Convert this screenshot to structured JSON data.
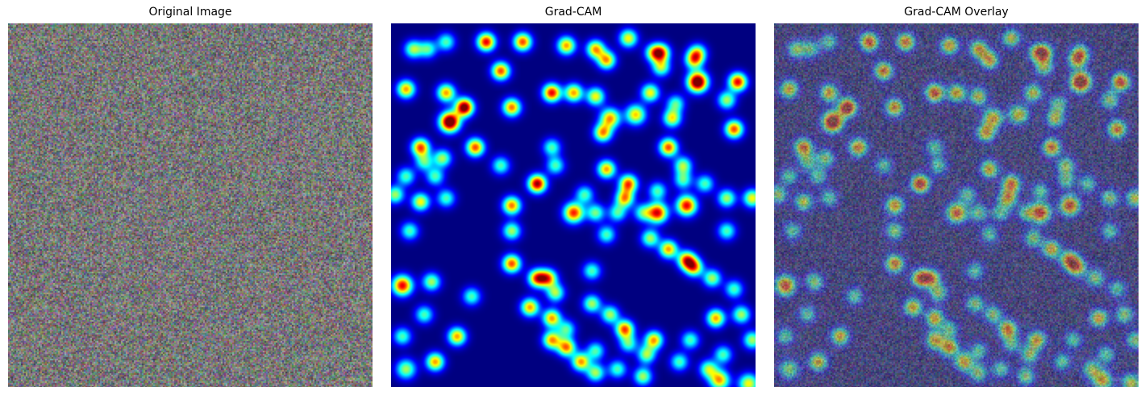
{
  "panels": [
    {
      "title": "Original Image",
      "kind": "noise"
    },
    {
      "title": "Grad-CAM",
      "kind": "heatmap"
    },
    {
      "title": "Grad-CAM Overlay",
      "kind": "overlay"
    }
  ],
  "colormap": "jet",
  "colors": {
    "background": "#ffffff",
    "heatmap_base": "#00008f",
    "noise_mean": "#7a7a72"
  },
  "blobs": [
    [
      0.26,
      0.05,
      1.0,
      0.045
    ],
    [
      0.3,
      0.13,
      0.9,
      0.045
    ],
    [
      0.36,
      0.05,
      0.9,
      0.045
    ],
    [
      0.48,
      0.06,
      0.8,
      0.045
    ],
    [
      0.56,
      0.07,
      0.8,
      0.045
    ],
    [
      0.59,
      0.1,
      0.8,
      0.045
    ],
    [
      0.65,
      0.04,
      0.7,
      0.045
    ],
    [
      0.74,
      0.08,
      0.8,
      0.045
    ],
    [
      0.83,
      0.1,
      0.7,
      0.045
    ],
    [
      0.84,
      0.16,
      1.3,
      0.05
    ],
    [
      0.95,
      0.16,
      1.0,
      0.045
    ],
    [
      0.04,
      0.18,
      0.8,
      0.045
    ],
    [
      0.15,
      0.19,
      0.8,
      0.045
    ],
    [
      0.2,
      0.23,
      1.2,
      0.045
    ],
    [
      0.16,
      0.27,
      1.3,
      0.05
    ],
    [
      0.33,
      0.23,
      0.85,
      0.045
    ],
    [
      0.44,
      0.19,
      1.0,
      0.045
    ],
    [
      0.5,
      0.19,
      0.8,
      0.045
    ],
    [
      0.56,
      0.2,
      0.7,
      0.045
    ],
    [
      0.6,
      0.26,
      0.8,
      0.05
    ],
    [
      0.67,
      0.25,
      0.75,
      0.05
    ],
    [
      0.71,
      0.19,
      0.7,
      0.045
    ],
    [
      0.77,
      0.26,
      0.7,
      0.045
    ],
    [
      0.92,
      0.21,
      0.6,
      0.045
    ],
    [
      0.94,
      0.29,
      0.9,
      0.045
    ],
    [
      0.08,
      0.34,
      0.9,
      0.045
    ],
    [
      0.23,
      0.34,
      0.9,
      0.045
    ],
    [
      0.58,
      0.3,
      0.8,
      0.045
    ],
    [
      0.44,
      0.34,
      0.5,
      0.045
    ],
    [
      0.76,
      0.34,
      0.9,
      0.045
    ],
    [
      0.8,
      0.39,
      0.6,
      0.045
    ],
    [
      0.14,
      0.37,
      0.6,
      0.045
    ],
    [
      0.04,
      0.42,
      0.5,
      0.045
    ],
    [
      0.59,
      0.4,
      0.8,
      0.045
    ],
    [
      0.65,
      0.44,
      0.9,
      0.045
    ],
    [
      0.8,
      0.43,
      0.5,
      0.045
    ],
    [
      0.86,
      0.44,
      0.5,
      0.045
    ],
    [
      0.4,
      0.44,
      1.1,
      0.045
    ],
    [
      0.08,
      0.49,
      0.7,
      0.045
    ],
    [
      0.15,
      0.48,
      0.5,
      0.045
    ],
    [
      0.33,
      0.5,
      0.85,
      0.045
    ],
    [
      0.53,
      0.47,
      0.5,
      0.045
    ],
    [
      0.64,
      0.48,
      0.8,
      0.045
    ],
    [
      0.73,
      0.46,
      0.5,
      0.045
    ],
    [
      0.81,
      0.5,
      1.0,
      0.05
    ],
    [
      0.92,
      0.48,
      0.6,
      0.045
    ],
    [
      0.99,
      0.48,
      0.7,
      0.045
    ],
    [
      0.01,
      0.47,
      0.6,
      0.045
    ],
    [
      0.5,
      0.52,
      0.95,
      0.05
    ],
    [
      0.56,
      0.52,
      0.55,
      0.045
    ],
    [
      0.62,
      0.52,
      0.5,
      0.045
    ],
    [
      0.69,
      0.52,
      0.5,
      0.045
    ],
    [
      0.73,
      0.52,
      1.0,
      0.05
    ],
    [
      0.05,
      0.57,
      0.5,
      0.045
    ],
    [
      0.33,
      0.57,
      0.6,
      0.045
    ],
    [
      0.59,
      0.58,
      0.5,
      0.045
    ],
    [
      0.71,
      0.59,
      0.6,
      0.045
    ],
    [
      0.92,
      0.57,
      0.5,
      0.045
    ],
    [
      0.76,
      0.62,
      0.8,
      0.045
    ],
    [
      0.81,
      0.65,
      0.9,
      0.045
    ],
    [
      0.83,
      0.67,
      0.8,
      0.045
    ],
    [
      0.88,
      0.7,
      0.6,
      0.045
    ],
    [
      0.03,
      0.72,
      1.0,
      0.05
    ],
    [
      0.11,
      0.71,
      0.6,
      0.045
    ],
    [
      0.33,
      0.66,
      0.9,
      0.045
    ],
    [
      0.4,
      0.7,
      0.9,
      0.045
    ],
    [
      0.43,
      0.7,
      0.8,
      0.045
    ],
    [
      0.55,
      0.68,
      0.5,
      0.045
    ],
    [
      0.94,
      0.73,
      0.5,
      0.045
    ],
    [
      0.09,
      0.8,
      0.5,
      0.045
    ],
    [
      0.22,
      0.75,
      0.5,
      0.045
    ],
    [
      0.38,
      0.78,
      0.8,
      0.045
    ],
    [
      0.45,
      0.74,
      0.6,
      0.045
    ],
    [
      0.89,
      0.81,
      0.8,
      0.045
    ],
    [
      0.96,
      0.8,
      0.6,
      0.045
    ],
    [
      0.44,
      0.81,
      0.8,
      0.045
    ],
    [
      0.44,
      0.87,
      0.8,
      0.045
    ],
    [
      0.55,
      0.77,
      0.6,
      0.045
    ],
    [
      0.6,
      0.8,
      0.6,
      0.045
    ],
    [
      0.64,
      0.84,
      0.9,
      0.045
    ],
    [
      0.18,
      0.86,
      0.8,
      0.045
    ],
    [
      0.03,
      0.86,
      0.5,
      0.045
    ],
    [
      0.48,
      0.84,
      0.5,
      0.045
    ],
    [
      0.48,
      0.89,
      0.85,
      0.045
    ],
    [
      0.56,
      0.9,
      0.5,
      0.045
    ],
    [
      0.65,
      0.88,
      0.5,
      0.045
    ],
    [
      0.52,
      0.93,
      0.8,
      0.045
    ],
    [
      0.56,
      0.96,
      0.6,
      0.045
    ],
    [
      0.62,
      0.95,
      0.5,
      0.045
    ],
    [
      0.7,
      0.91,
      0.6,
      0.045
    ],
    [
      0.72,
      0.87,
      0.8,
      0.045
    ],
    [
      0.79,
      0.93,
      0.5,
      0.045
    ],
    [
      0.82,
      0.87,
      0.5,
      0.045
    ],
    [
      0.91,
      0.91,
      0.5,
      0.045
    ],
    [
      0.99,
      0.87,
      0.6,
      0.045
    ],
    [
      0.12,
      0.93,
      0.8,
      0.045
    ],
    [
      0.04,
      0.95,
      0.6,
      0.05
    ],
    [
      0.69,
      0.97,
      0.6,
      0.045
    ],
    [
      0.87,
      0.95,
      0.6,
      0.045
    ],
    [
      0.9,
      0.98,
      0.8,
      0.05
    ],
    [
      0.98,
      0.99,
      0.7,
      0.05
    ],
    [
      0.06,
      0.07,
      0.6,
      0.045
    ],
    [
      0.1,
      0.07,
      0.5,
      0.045
    ],
    [
      0.15,
      0.05,
      0.5,
      0.045
    ],
    [
      0.84,
      0.08,
      0.6,
      0.045
    ],
    [
      0.72,
      0.08,
      0.6,
      0.045
    ],
    [
      0.74,
      0.12,
      0.6,
      0.045
    ],
    [
      0.12,
      0.42,
      0.5,
      0.045
    ],
    [
      0.78,
      0.22,
      0.5,
      0.045
    ],
    [
      0.45,
      0.39,
      0.5,
      0.045
    ],
    [
      0.3,
      0.39,
      0.5,
      0.045
    ],
    [
      0.09,
      0.38,
      0.5,
      0.045
    ]
  ]
}
